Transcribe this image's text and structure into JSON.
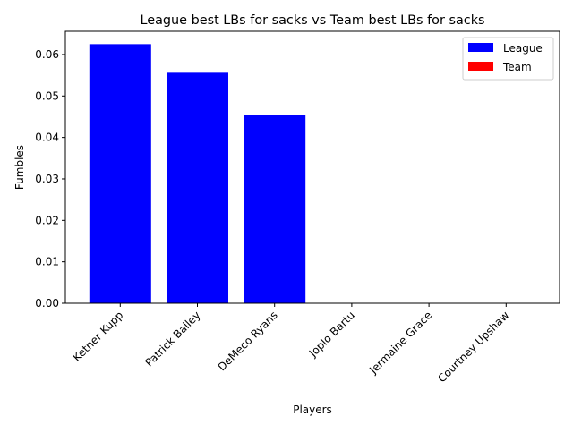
{
  "chart_data": {
    "type": "bar",
    "title": "League best LBs for sacks vs Team best LBs for sacks",
    "xlabel": "Players",
    "ylabel": "Fumbles",
    "categories": [
      "Ketner Kupp",
      "Patrick Bailey",
      "DeMeco Ryans",
      "Joplo Bartu",
      "Jermaine Grace",
      "Courtney Upshaw"
    ],
    "series": [
      {
        "name": "League",
        "color": "#0000ff",
        "values": [
          0.0625,
          0.0556,
          0.0455,
          0,
          0,
          0
        ]
      },
      {
        "name": "Team",
        "color": "#ff0000",
        "values": [
          0,
          0,
          0,
          0,
          0,
          0
        ]
      }
    ],
    "ylim": [
      0,
      0.0656
    ],
    "yticks": [
      "0.00",
      "0.01",
      "0.02",
      "0.03",
      "0.04",
      "0.05",
      "0.06"
    ],
    "grid": false,
    "legend_position": "top-right"
  }
}
